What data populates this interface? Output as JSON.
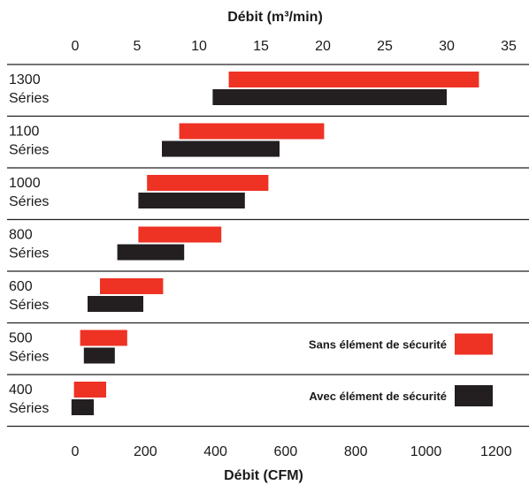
{
  "chart_data": {
    "type": "bar",
    "orientation": "horizontal-range",
    "top_axis": {
      "title": "Débit (m³/min)",
      "ticks": [
        "0",
        "5",
        "10",
        "15",
        "20",
        "25",
        "30",
        "35"
      ],
      "tick_values": [
        0,
        5,
        10,
        15,
        20,
        25,
        30,
        35
      ],
      "range": [
        0,
        35
      ]
    },
    "bottom_axis": {
      "title": "Débit (CFM)",
      "ticks": [
        "0",
        "200",
        "400",
        "600",
        "800",
        "1000",
        "1200"
      ],
      "tick_values": [
        0,
        200,
        400,
        600,
        800,
        1000,
        1200
      ],
      "range": [
        0,
        1236
      ]
    },
    "categories": [
      {
        "line1": "1300",
        "line2": "Séries"
      },
      {
        "line1": "1100",
        "line2": "Séries"
      },
      {
        "line1": "1000",
        "line2": "Séries"
      },
      {
        "line1": "800",
        "line2": "Séries"
      },
      {
        "line1": "600",
        "line2": "Séries"
      },
      {
        "line1": "500",
        "line2": "Séries"
      },
      {
        "line1": "400",
        "line2": "Séries"
      }
    ],
    "series": [
      {
        "name": "Sans élément de sécurité",
        "color": "#ee3224",
        "ranges_m3min": [
          [
            12.4,
            32.6
          ],
          [
            8.4,
            20.1
          ],
          [
            5.8,
            15.6
          ],
          [
            5.1,
            11.8
          ],
          [
            2.0,
            7.1
          ],
          [
            0.4,
            4.2
          ],
          [
            -0.1,
            2.5
          ]
        ]
      },
      {
        "name": "Avec élément de sécurité",
        "color": "#231f20",
        "ranges_m3min": [
          [
            11.1,
            30.0
          ],
          [
            7.0,
            16.5
          ],
          [
            5.1,
            13.7
          ],
          [
            3.4,
            8.8
          ],
          [
            1.0,
            5.5
          ],
          [
            0.7,
            3.2
          ],
          [
            -0.3,
            1.5
          ]
        ]
      }
    ],
    "legend_position": "bottom-right",
    "grid": false
  }
}
